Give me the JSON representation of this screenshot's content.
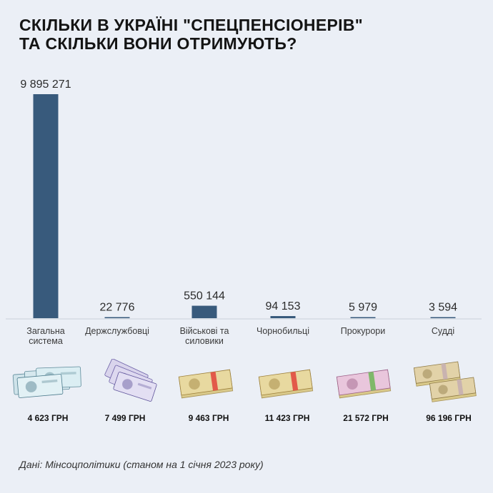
{
  "title_lines": [
    "СКІЛЬКИ В УКРАЇНІ \"СПЕЦПЕНСІОНЕРІВ\"",
    "ТА СКІЛЬКИ ВОНИ ОТРИМУЮТЬ?"
  ],
  "chart_data": {
    "type": "bar",
    "title": "СКІЛЬКИ В УКРАЇНІ \"СПЕЦПЕНСІОНЕРІВ\" ТА СКІЛЬКИ ВОНИ ОТРИМУЮТЬ?",
    "categories": [
      [
        "Загальна",
        "система"
      ],
      [
        "Держслужбовці"
      ],
      [
        "Військові та",
        "силовики"
      ],
      [
        "Чорнобильці"
      ],
      [
        "Прокурори"
      ],
      [
        "Судді"
      ]
    ],
    "values": [
      9895271,
      22776,
      550144,
      94153,
      5979,
      3594
    ],
    "value_labels": [
      "9 895 271",
      "22 776",
      "550 144",
      "94 153",
      "5 979",
      "3 594"
    ],
    "ylim": [
      0,
      9895271
    ],
    "grid": false,
    "bar_color": "#385a7c"
  },
  "pension_amounts": [
    "4 623 ГРН",
    "7 499 ГРН",
    "9 463 ГРН",
    "11 423 ГРН",
    "21 572 ГРН",
    "96 196 ГРН"
  ],
  "money_icons": [
    "banknotes-1000-icon",
    "banknotes-50-icon",
    "money-pack-icon",
    "money-pack-icon",
    "money-pack-pink-icon",
    "money-packs-stacked-icon"
  ],
  "source": "Дані: Мінсоцполітики (станом на 1 січня 2023 року)"
}
